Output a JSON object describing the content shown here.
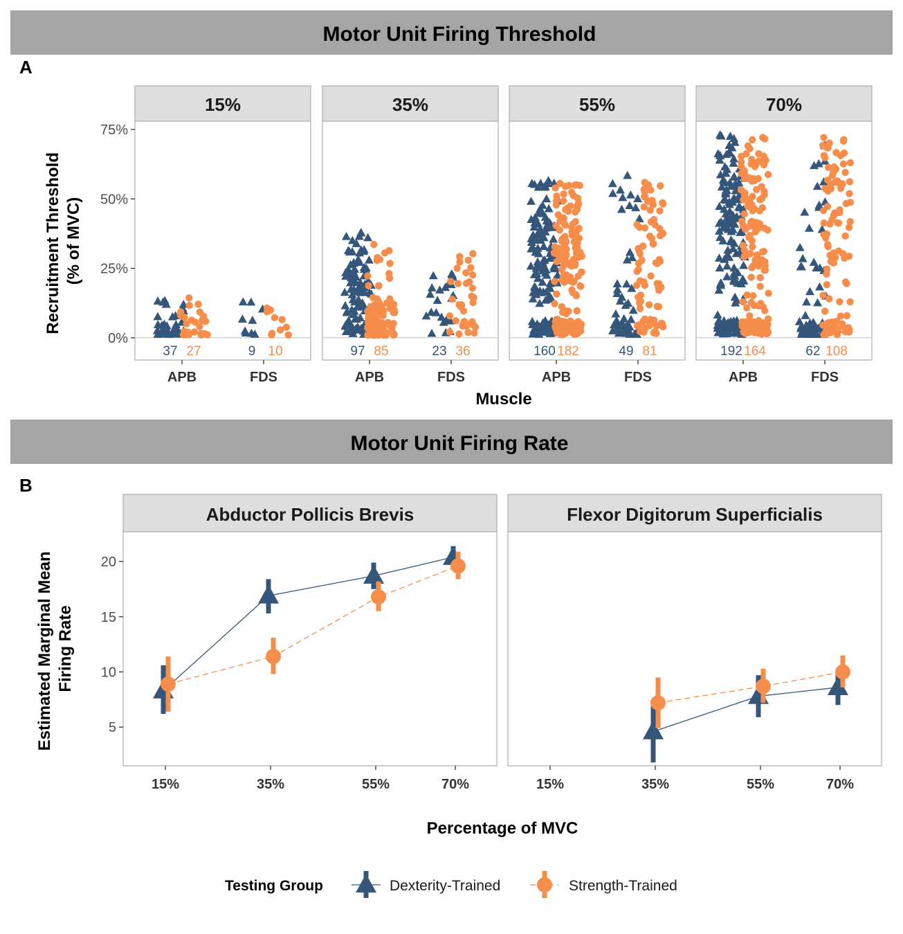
{
  "colors": {
    "dexterity": "#34567a",
    "strength": "#f78d4a",
    "banner_bg": "#a5a5a5",
    "strip_bg": "#dedede",
    "panel_border": "#b3b3b3",
    "zero_line": "#cccccc"
  },
  "banners": {
    "top": "Motor Unit Firing Threshold",
    "bottom": "Motor Unit Firing Rate"
  },
  "panel_labels": {
    "a": "A",
    "b": "B"
  },
  "legend": {
    "title": "Testing Group",
    "items": [
      {
        "label": "Dexterity-Trained",
        "color": "#34567a",
        "shape": "triangle-icon"
      },
      {
        "label": "Strength-Trained",
        "color": "#f78d4a",
        "shape": "circle-icon"
      }
    ]
  },
  "chart_data": [
    {
      "id": "threshold",
      "type": "scatter",
      "ylabel_line1": "Recruitment Threshold",
      "ylabel_line2": "(% of MVC)",
      "xlabel": "Muscle",
      "ylim": [
        -8,
        78
      ],
      "yticks": [
        0,
        25,
        50,
        75
      ],
      "ytick_labels": [
        "0%",
        "25%",
        "50%",
        "75%"
      ],
      "categories": [
        "APB",
        "FDS"
      ],
      "facets": [
        {
          "title": "15%",
          "groups": {
            "APB": {
              "dex": {
                "n": 37,
                "label": "37",
                "lo": 1,
                "hi": 15,
                "mode": 3
              },
              "str": {
                "n": 27,
                "label": "27",
                "lo": 1,
                "hi": 15,
                "mode": 2
              }
            },
            "FDS": {
              "dex": {
                "n": 9,
                "label": "9",
                "lo": 1,
                "hi": 16,
                "mode": 3
              },
              "str": {
                "n": 10,
                "label": "10",
                "lo": 1,
                "hi": 14,
                "mode": 2
              }
            }
          }
        },
        {
          "title": "35%",
          "groups": {
            "APB": {
              "dex": {
                "n": 97,
                "label": "97",
                "lo": 1,
                "hi": 39,
                "mode": 20
              },
              "str": {
                "n": 85,
                "label": "85",
                "lo": 1,
                "hi": 34,
                "mode": 6
              }
            },
            "FDS": {
              "dex": {
                "n": 23,
                "label": "23",
                "lo": 1,
                "hi": 26,
                "mode": 16
              },
              "str": {
                "n": 36,
                "label": "36",
                "lo": 1,
                "hi": 32,
                "mode": 18
              }
            }
          }
        },
        {
          "title": "55%",
          "groups": {
            "APB": {
              "dex": {
                "n": 160,
                "label": "160",
                "lo": 1,
                "hi": 57,
                "mode": 30
              },
              "str": {
                "n": 182,
                "label": "182",
                "lo": 1,
                "hi": 58,
                "mode": 35
              }
            },
            "FDS": {
              "dex": {
                "n": 49,
                "label": "49",
                "lo": 1,
                "hi": 59,
                "mode": 4
              },
              "str": {
                "n": 81,
                "label": "81",
                "lo": 1,
                "hi": 56,
                "mode": 35
              }
            }
          }
        },
        {
          "title": "70%",
          "groups": {
            "APB": {
              "dex": {
                "n": 192,
                "label": "192",
                "lo": 1,
                "hi": 73,
                "mode": 40
              },
              "str": {
                "n": 164,
                "label": "164",
                "lo": 1,
                "hi": 73,
                "mode": 45
              }
            },
            "FDS": {
              "dex": {
                "n": 62,
                "label": "62",
                "lo": 1,
                "hi": 74,
                "mode": 4
              },
              "str": {
                "n": 108,
                "label": "108",
                "lo": 1,
                "hi": 74,
                "mode": 50
              }
            }
          }
        }
      ]
    },
    {
      "id": "firing_rate",
      "type": "line",
      "ylabel_line1": "Estimated Marginal Mean",
      "ylabel_line2": "Firing Rate",
      "xlabel": "Percentage of MVC",
      "ylim": [
        1.5,
        22.7
      ],
      "yticks": [
        5,
        10,
        15,
        20
      ],
      "ytick_labels": [
        "5",
        "10",
        "15",
        "20"
      ],
      "categories": [
        "15%",
        "35%",
        "55%",
        "70%"
      ],
      "facets": [
        {
          "title": "Abductor Pollicis Brevis",
          "series": [
            {
              "group": "Dexterity-Trained",
              "x": [
                "15%",
                "35%",
                "55%",
                "70%"
              ],
              "y": [
                8.3,
                16.9,
                18.7,
                20.4
              ],
              "lo": [
                6.2,
                15.3,
                17.5,
                19.5
              ],
              "hi": [
                10.6,
                18.4,
                19.9,
                21.4
              ]
            },
            {
              "group": "Strength-Trained",
              "x": [
                "15%",
                "35%",
                "55%",
                "70%"
              ],
              "y": [
                8.9,
                11.4,
                16.8,
                19.6
              ],
              "lo": [
                6.4,
                9.8,
                15.5,
                18.4
              ],
              "hi": [
                11.4,
                13.1,
                18.2,
                20.9
              ]
            }
          ]
        },
        {
          "title": "Flexor Digitorum Superficialis",
          "series": [
            {
              "group": "Dexterity-Trained",
              "x": [
                "35%",
                "55%",
                "70%"
              ],
              "y": [
                4.6,
                7.8,
                8.6
              ],
              "lo": [
                1.8,
                5.9,
                7.0
              ],
              "hi": [
                7.4,
                9.7,
                10.2
              ]
            },
            {
              "group": "Strength-Trained",
              "x": [
                "35%",
                "55%",
                "70%"
              ],
              "y": [
                7.2,
                8.7,
                10.0
              ],
              "lo": [
                4.9,
                7.2,
                8.6
              ],
              "hi": [
                9.5,
                10.3,
                11.5
              ]
            }
          ]
        }
      ]
    }
  ]
}
